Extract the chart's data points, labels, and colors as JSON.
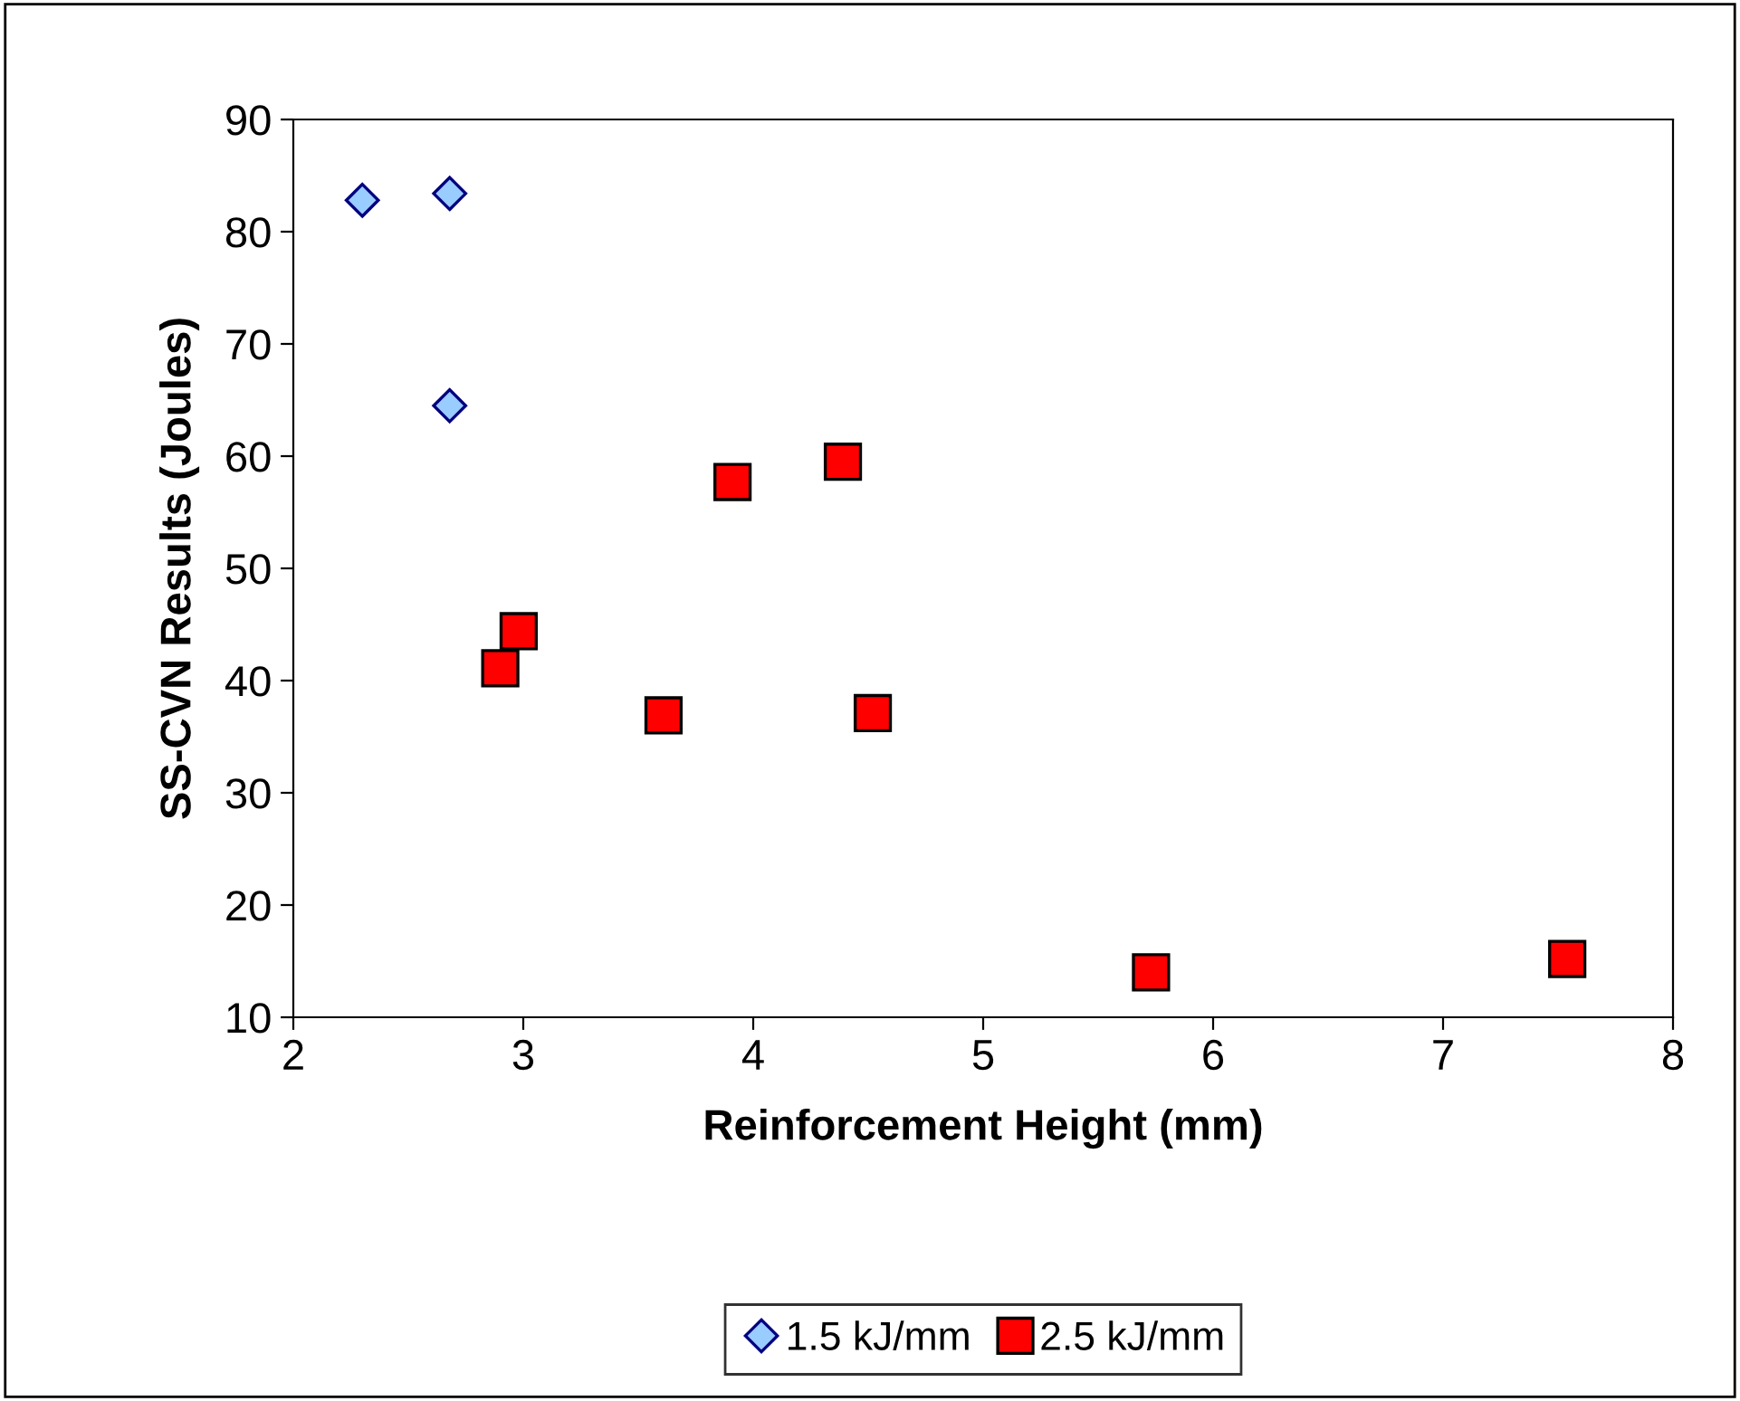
{
  "chart_data": {
    "type": "scatter",
    "xlabel": "Reinforcement Height (mm)",
    "ylabel": "SS-CVN Results (Joules)",
    "xlim": [
      2,
      8
    ],
    "xticks": [
      2,
      3,
      4,
      5,
      6,
      7,
      8
    ],
    "ylim": [
      10,
      90
    ],
    "yticks": [
      10,
      20,
      30,
      40,
      50,
      60,
      70,
      80,
      90
    ],
    "grid": false,
    "legend": "bottom",
    "series": [
      {
        "name": "1.5 kJ/mm",
        "color": "#99ccff",
        "marker": "diamond",
        "x": [
          2.3,
          2.68,
          2.68
        ],
        "values": [
          82.8,
          83.4,
          64.5
        ]
      },
      {
        "name": "2.5 kJ/mm",
        "color": "#ff0000",
        "marker": "square",
        "x": [
          2.9,
          2.98,
          3.61,
          3.91,
          4.39,
          4.52,
          5.73,
          7.54
        ],
        "values": [
          41.1,
          44.4,
          36.9,
          57.7,
          59.5,
          37.1,
          14.0,
          15.2
        ]
      }
    ]
  }
}
